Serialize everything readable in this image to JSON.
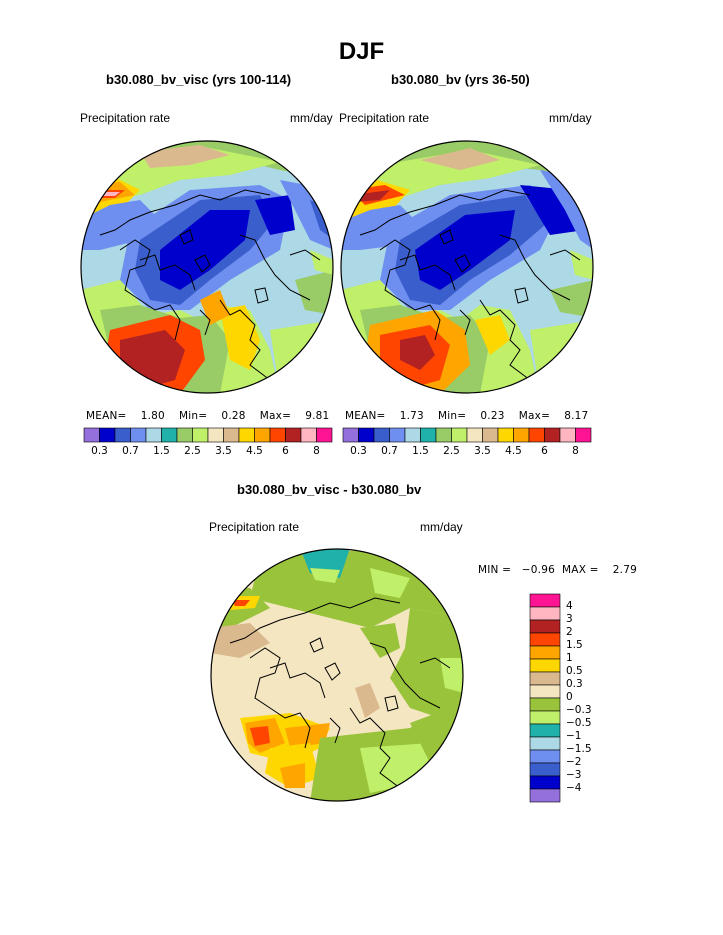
{
  "title": "DJF",
  "panels": [
    {
      "id": "visc",
      "title": "b30.080_bv_visc (yrs 100-114)",
      "left_label": "Precipitation rate",
      "right_label": "mm/day",
      "stats": {
        "mean_label": "MEAN=",
        "mean": "1.80",
        "min_label": "Min=",
        "min": "0.28",
        "max_label": "Max=",
        "max": "9.81"
      }
    },
    {
      "id": "bv",
      "title": "b30.080_bv (yrs 36-50)",
      "left_label": "Precipitation rate",
      "right_label": "mm/day",
      "stats": {
        "mean_label": "MEAN=",
        "mean": "1.73",
        "min_label": "Min=",
        "min": "0.23",
        "max_label": "Max=",
        "max": "8.17"
      }
    },
    {
      "id": "diff",
      "title": "b30.080_bv_visc - b30.080_bv",
      "left_label": "Precipitation rate",
      "right_label": "mm/day",
      "stats": {
        "min_label": "MIN =",
        "min": "−0.96",
        "max_label": "MAX =",
        "max": "2.79"
      }
    }
  ],
  "abs_colorbar": {
    "colors": [
      "#9370db",
      "#0000cd",
      "#3a5fcd",
      "#6f8ff0",
      "#add8e6",
      "#20b2aa",
      "#99cc66",
      "#c0ef6a",
      "#f5e6c2",
      "#dbb98f",
      "#ffd700",
      "#ffa500",
      "#ff4500",
      "#b22222",
      "#ffb6c1",
      "#ff1493"
    ],
    "labels": [
      "0.3",
      "0.7",
      "1.5",
      "2.5",
      "3.5",
      "4.5",
      "6",
      "8"
    ]
  },
  "diff_colorbar": {
    "colors": [
      "#ff1493",
      "#ffb6c1",
      "#b22222",
      "#ff4500",
      "#ffa500",
      "#ffd700",
      "#dbb98f",
      "#f5e6c2",
      "#99c33a",
      "#c0ef6a",
      "#20b2aa",
      "#add8e6",
      "#6f8ff0",
      "#3a5fcd",
      "#0000cd",
      "#9370db"
    ],
    "labels": [
      "4",
      "3",
      "2",
      "1.5",
      "1",
      "0.5",
      "0.3",
      "0",
      "−0.3",
      "−0.5",
      "−1",
      "−1.5",
      "−2",
      "−3",
      "−4"
    ]
  }
}
